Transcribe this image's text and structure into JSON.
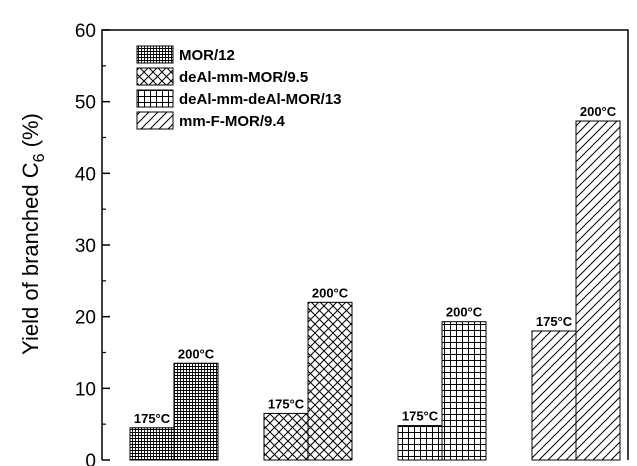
{
  "chart_data": {
    "type": "bar",
    "title": "",
    "ylabel": "Yield of branched C6 (%)",
    "ylabel_main": "Yield of branched C",
    "ylabel_sub": "6",
    "ylabel_unit": " (%)",
    "xlabel": "",
    "ylim": [
      0,
      60
    ],
    "yticks": [
      0,
      10,
      20,
      30,
      40,
      50,
      60
    ],
    "legend_position": "top-left",
    "grid": false,
    "groups": [
      {
        "name": "MOR/12",
        "pattern": "fine-grid",
        "bars": [
          {
            "label": "175°C",
            "value": 4.5
          },
          {
            "label": "200°C",
            "value": 13.5
          }
        ]
      },
      {
        "name": "deAl-mm-MOR/9.5",
        "pattern": "crosshatch",
        "bars": [
          {
            "label": "175°C",
            "value": 6.5
          },
          {
            "label": "200°C",
            "value": 22.0
          }
        ]
      },
      {
        "name": "deAl-mm-deAl-MOR/13",
        "pattern": "square-grid",
        "bars": [
          {
            "label": "175°C",
            "value": 4.8
          },
          {
            "label": "200°C",
            "value": 19.3
          }
        ]
      },
      {
        "name": "mm-F-MOR/9.4",
        "pattern": "diagonal",
        "bars": [
          {
            "label": "175°C",
            "value": 18.0
          },
          {
            "label": "200°C",
            "value": 47.3
          }
        ]
      }
    ],
    "colors": {
      "bar_fill": "#ffffff",
      "stroke": "#000000"
    }
  }
}
